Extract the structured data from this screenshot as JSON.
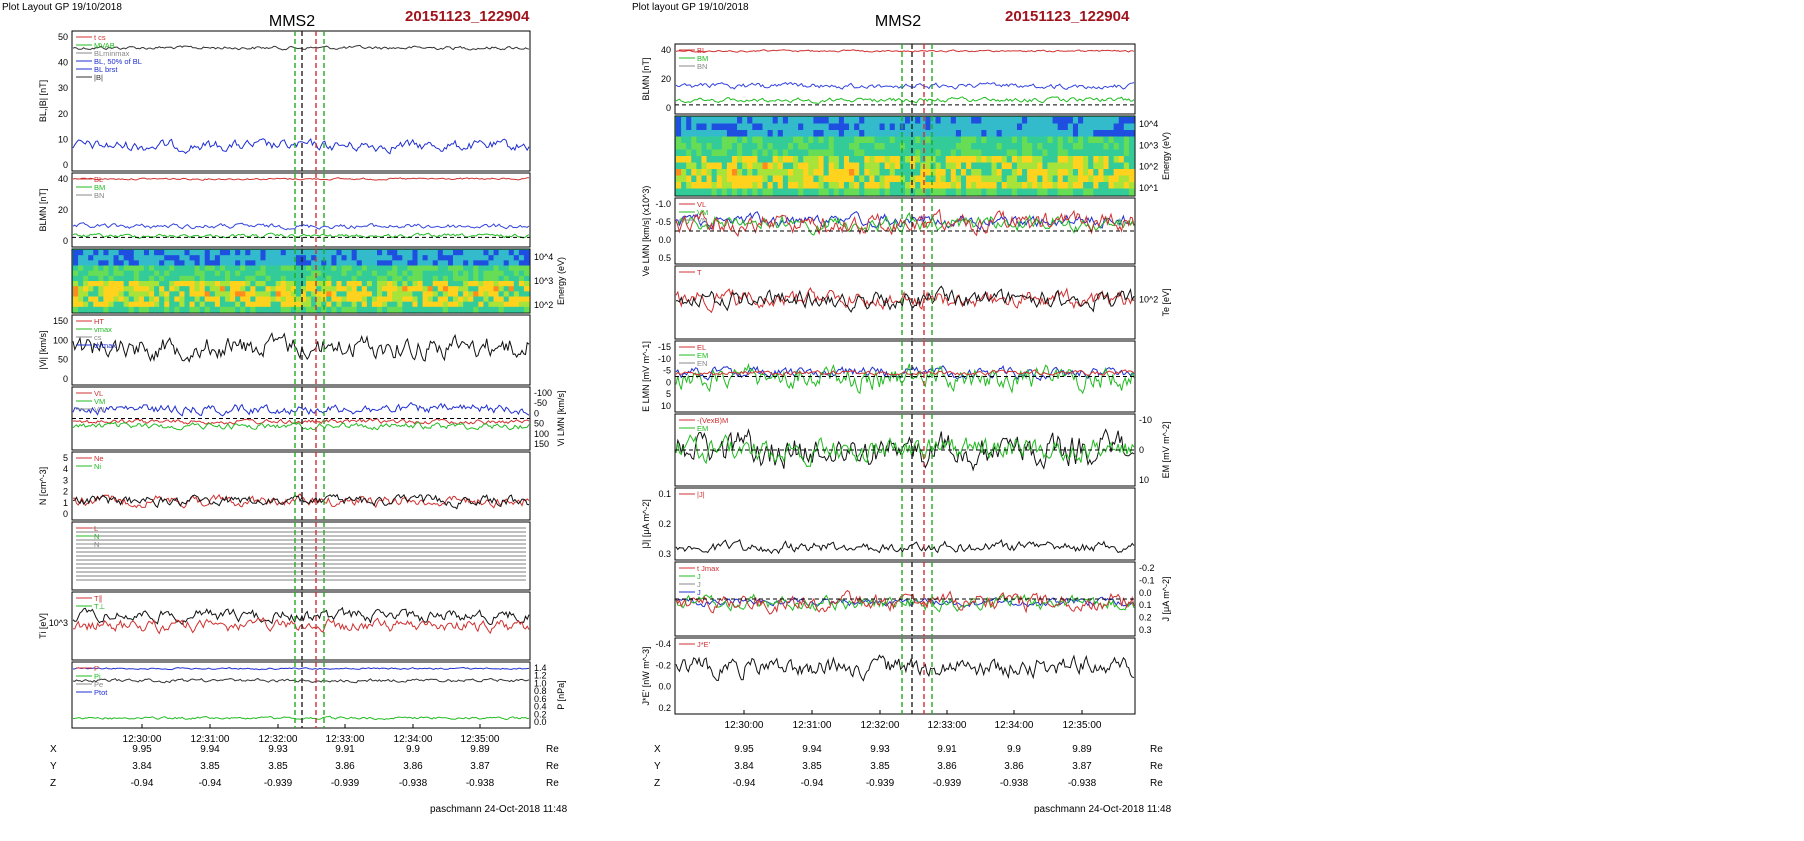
{
  "panels": [
    {
      "header": "Plot Layout GP 19/10/2018",
      "spacecraft": "MMS2",
      "event_id": "20151123_122904",
      "footer": "paschmann 24-Oct-2018 11:48",
      "time_ticks": [
        "12:30:00",
        "12:31:00",
        "12:32:00",
        "12:33:00",
        "12:34:00",
        "12:35:00"
      ],
      "coords": [
        {
          "label": "X",
          "values": [
            "9.95",
            "9.94",
            "9.93",
            "9.91",
            "9.9",
            "9.89"
          ],
          "unit": "Re"
        },
        {
          "label": "Y",
          "values": [
            "3.84",
            "3.85",
            "3.85",
            "3.86",
            "3.86",
            "3.87"
          ],
          "unit": "Re"
        },
        {
          "label": "Z",
          "values": [
            "-0.94",
            "-0.94",
            "-0.939",
            "-0.939",
            "-0.938",
            "-0.938"
          ],
          "unit": "Re"
        }
      ],
      "marker_colors": [
        "#22aa22",
        "#222222",
        "#d03030",
        "#22aa22"
      ]
    },
    {
      "header": "Plot layout GP 19/10/2018",
      "spacecraft": "MMS2",
      "event_id": "20151123_122904",
      "footer": "paschmann 24-Oct-2018 11:48",
      "time_ticks": [
        "12:30:00",
        "12:31:00",
        "12:32:00",
        "12:33:00",
        "12:34:00",
        "12:35:00"
      ],
      "coords": [
        {
          "label": "X",
          "values": [
            "9.95",
            "9.94",
            "9.93",
            "9.91",
            "9.9",
            "9.89"
          ],
          "unit": "Re"
        },
        {
          "label": "Y",
          "values": [
            "3.84",
            "3.85",
            "3.85",
            "3.86",
            "3.86",
            "3.87"
          ],
          "unit": "Re"
        },
        {
          "label": "Z",
          "values": [
            "-0.94",
            "-0.94",
            "-0.939",
            "-0.939",
            "-0.938",
            "-0.938"
          ],
          "unit": "Re"
        }
      ],
      "marker_colors": [
        "#22aa22",
        "#222222",
        "#d03030",
        "#22aa22"
      ]
    }
  ],
  "chart_data": [
    {
      "type": "line",
      "title": "MMS2",
      "subtitle": "20151123_122904",
      "x_axis": {
        "ticks": [
          "12:30:00",
          "12:31:00",
          "12:32:00",
          "12:33:00",
          "12:34:00",
          "12:35:00"
        ]
      },
      "subplots": [
        {
          "id": "L1",
          "ylabel": "BL,|B| [nT]",
          "yticks": [
            "0",
            "10",
            "20",
            "30",
            "40",
            "50"
          ],
          "ylim": [
            0,
            55
          ],
          "legend": [
            "t cs",
            "MVAB",
            "BLminmax",
            "BL, 50% of BL",
            "BL brst",
            "|B|"
          ],
          "series": [
            {
              "name": "|B|",
              "color": "#333333",
              "approx": 50
            },
            {
              "name": "BL brst",
              "color": "#1f2fd0",
              "approx": 9
            }
          ]
        },
        {
          "id": "L2",
          "ylabel": "BLMN [nT]",
          "yticks": [
            "0",
            "20",
            "40"
          ],
          "ylim": [
            -5,
            50
          ],
          "legend": [
            "BL",
            "BM",
            "BN"
          ],
          "series": [
            {
              "name": "BL",
              "color": "#1f2fd0"
            },
            {
              "name": "BM",
              "color": "#22bb22"
            },
            {
              "name": "BN",
              "color": "#d03030"
            }
          ]
        },
        {
          "id": "L3",
          "type": "heatmap",
          "ylabel": "Energy (eV)",
          "yticks": [
            "10^4",
            "10^3",
            "10^2"
          ]
        },
        {
          "id": "L4",
          "ylabel": "|Vi| [km/s]",
          "yticks": [
            "0",
            "50",
            "100",
            "150"
          ],
          "ylim": [
            0,
            160
          ],
          "legend": [
            "HT",
            "vmax",
            "cs",
            "dvmax"
          ]
        },
        {
          "id": "L5",
          "ylabel": "Vi LMN [km/s]",
          "yticks": [
            "150",
            "100",
            "50",
            "0",
            "-50",
            "-100"
          ],
          "ylim": [
            -110,
            160
          ],
          "legend": [
            "VL",
            "VM",
            "VN"
          ]
        },
        {
          "id": "L6",
          "ylabel": "N [cm^-3]",
          "yticks": [
            "0",
            "1",
            "2",
            "3",
            "4",
            "5"
          ],
          "ylim": [
            0,
            5.5
          ],
          "legend": [
            "Ne",
            "Ni"
          ]
        },
        {
          "id": "L7",
          "ylabel": "",
          "legend": [
            "L",
            "N",
            "N"
          ]
        },
        {
          "id": "L8",
          "ylabel": "Ti [eV]",
          "yticks": [
            "10^3"
          ],
          "legend": [
            "T∥",
            "T⊥"
          ]
        },
        {
          "id": "L9",
          "ylabel": "P [nPa]",
          "yticks": [
            "0.0",
            "0.2",
            "0.4",
            "0.6",
            "0.8",
            "1.0",
            "1.2",
            "1.4"
          ],
          "ylim": [
            0,
            1.45
          ],
          "legend": [
            "P",
            "Pi",
            "Pe",
            "Ptot"
          ]
        }
      ]
    },
    {
      "type": "line",
      "title": "MMS2",
      "subtitle": "20151123_122904",
      "x_axis": {
        "ticks": [
          "12:30:00",
          "12:31:00",
          "12:32:00",
          "12:33:00",
          "12:34:00",
          "12:35:00"
        ]
      },
      "subplots": [
        {
          "id": "R1",
          "ylabel": "BLMN [nT]",
          "yticks": [
            "0",
            "20",
            "40"
          ],
          "ylim": [
            -5,
            55
          ],
          "legend": [
            "BL",
            "BM",
            "BN"
          ]
        },
        {
          "id": "R2",
          "type": "heatmap",
          "ylabel": "Energy (eV)",
          "yticks": [
            "10^4",
            "10^3",
            "10^2",
            "10^1"
          ]
        },
        {
          "id": "R3",
          "ylabel": "Ve LMN [km/s] (x10^3)",
          "yticks": [
            "0.5",
            "0.0",
            "-0.5",
            "-1.0"
          ],
          "ylim": [
            -1.05,
            0.7
          ],
          "legend": [
            "VL",
            "VM",
            "VN"
          ]
        },
        {
          "id": "R4",
          "ylabel": "Te [eV]",
          "yticks": [
            "10^2"
          ],
          "legend": [
            "T"
          ]
        },
        {
          "id": "R5",
          "ylabel": "E LMN [mV m^-1]",
          "yticks": [
            "10",
            "5",
            "0",
            "-5",
            "-10",
            "-15"
          ],
          "ylim": [
            -16,
            14
          ],
          "legend": [
            "EL",
            "EM",
            "EN"
          ]
        },
        {
          "id": "R6",
          "ylabel": "EM [mV m^-2]",
          "yticks": [
            "10",
            "0",
            "-10"
          ],
          "ylim": [
            -15,
            15
          ],
          "legend": [
            "-(VexB)M",
            "EM"
          ]
        },
        {
          "id": "R7",
          "ylabel": "|J| [μA m^-2]",
          "yticks": [
            "0.3",
            "0.2",
            "0.1"
          ],
          "ylim": [
            0,
            0.32
          ],
          "legend": [
            "|J|"
          ]
        },
        {
          "id": "R8",
          "ylabel": "J [μA m^-2]",
          "yticks": [
            "0.3",
            "0.2",
            "0.1",
            "0.0",
            "-0.1",
            "-0.2"
          ],
          "ylim": [
            -0.22,
            0.32
          ],
          "legend": [
            "t Jmax",
            "J",
            "J",
            "J"
          ]
        },
        {
          "id": "R9",
          "ylabel": "J*E' [nW m^-3]",
          "yticks": [
            "0.2",
            "0.0",
            "-0.2",
            "-0.4"
          ],
          "ylim": [
            -0.45,
            0.25
          ],
          "legend": [
            "J*E'"
          ]
        }
      ]
    }
  ]
}
